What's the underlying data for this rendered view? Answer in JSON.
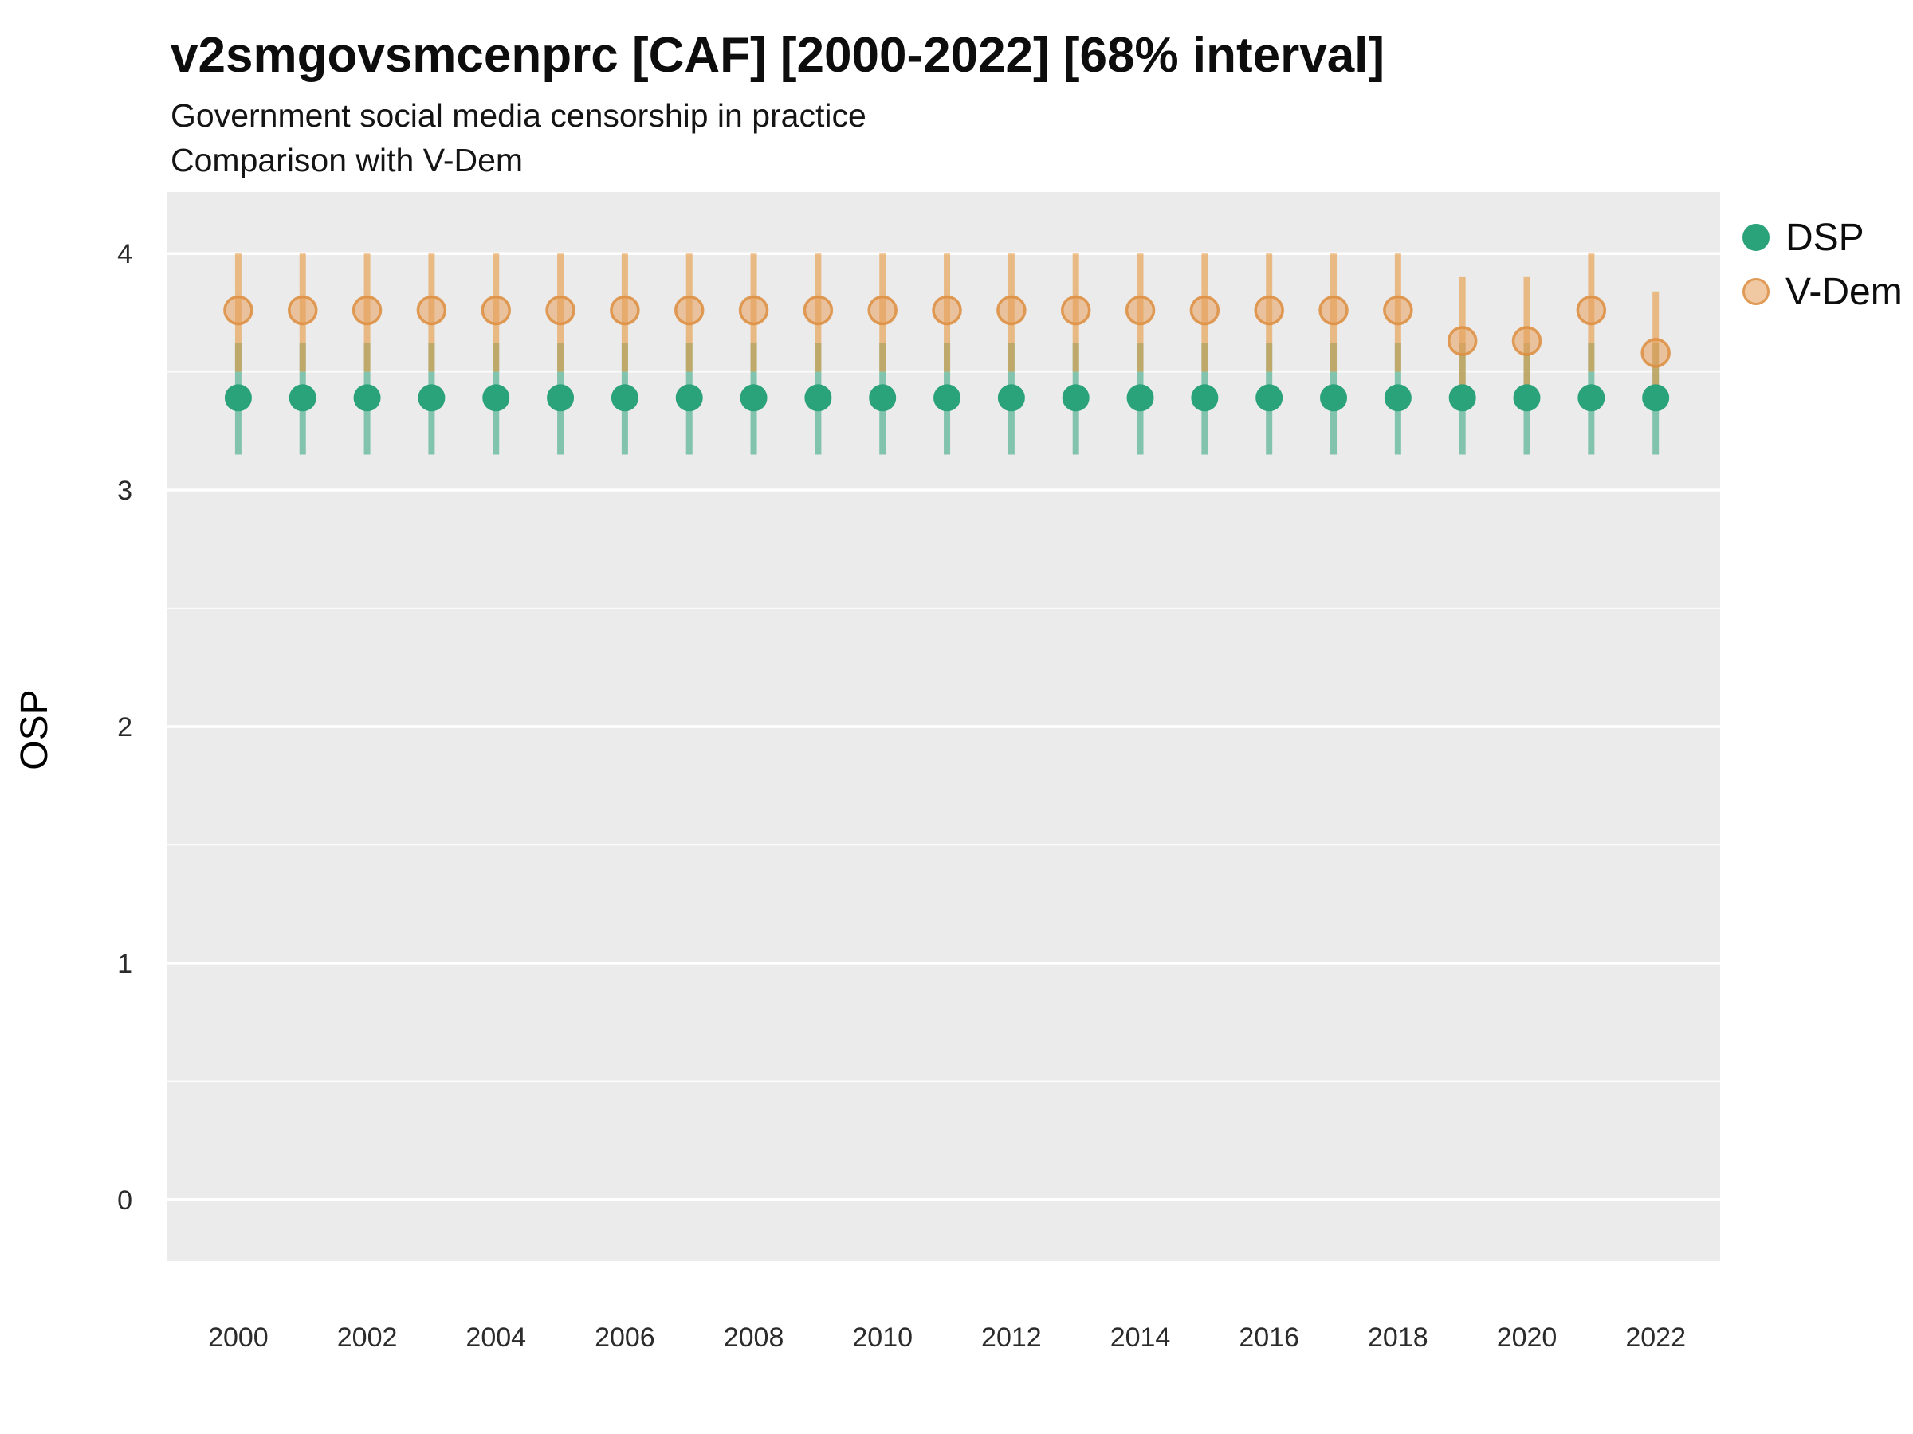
{
  "title": "v2smgovsmcenprc [CAF] [2000-2022] [68% interval]",
  "subtitle1": "Government social media censorship in practice",
  "subtitle2": "Comparison with V-Dem",
  "ylabel": "OSP",
  "legend": [
    {
      "label": "DSP",
      "fill": "#2aa27a",
      "stroke": "#2aa27a"
    },
    {
      "label": "V-Dem",
      "fill": "#f0c9a2",
      "stroke": "#e09a55"
    }
  ],
  "chart_data": {
    "type": "pointrange",
    "title": "v2smgovsmcenprc [CAF] [2000-2022] [68% interval]",
    "xlabel": "",
    "ylabel": "OSP",
    "interval": "68%",
    "xlim": [
      1998.9,
      2023.0
    ],
    "ylim": [
      -0.26,
      4.26
    ],
    "xticks": [
      2000,
      2002,
      2004,
      2006,
      2008,
      2010,
      2012,
      2014,
      2016,
      2018,
      2020,
      2022
    ],
    "yticks": [
      0,
      1,
      2,
      3,
      4
    ],
    "x": [
      2000,
      2001,
      2002,
      2003,
      2004,
      2005,
      2006,
      2007,
      2008,
      2009,
      2010,
      2011,
      2012,
      2013,
      2014,
      2015,
      2016,
      2017,
      2018,
      2019,
      2020,
      2021,
      2022
    ],
    "series": [
      {
        "name": "DSP",
        "median": [
          3.39,
          3.39,
          3.39,
          3.39,
          3.39,
          3.39,
          3.39,
          3.39,
          3.39,
          3.39,
          3.39,
          3.39,
          3.39,
          3.39,
          3.39,
          3.39,
          3.39,
          3.39,
          3.39,
          3.39,
          3.39,
          3.39,
          3.39
        ],
        "lower": [
          3.15,
          3.15,
          3.15,
          3.15,
          3.15,
          3.15,
          3.15,
          3.15,
          3.15,
          3.15,
          3.15,
          3.15,
          3.15,
          3.15,
          3.15,
          3.15,
          3.15,
          3.15,
          3.15,
          3.15,
          3.15,
          3.15,
          3.15
        ],
        "upper": [
          3.62,
          3.62,
          3.62,
          3.62,
          3.62,
          3.62,
          3.62,
          3.62,
          3.62,
          3.62,
          3.62,
          3.62,
          3.62,
          3.62,
          3.62,
          3.62,
          3.62,
          3.62,
          3.62,
          3.62,
          3.62,
          3.62,
          3.62
        ]
      },
      {
        "name": "V-Dem",
        "median": [
          3.76,
          3.76,
          3.76,
          3.76,
          3.76,
          3.76,
          3.76,
          3.76,
          3.76,
          3.76,
          3.76,
          3.76,
          3.76,
          3.76,
          3.76,
          3.76,
          3.76,
          3.76,
          3.76,
          3.63,
          3.63,
          3.76,
          3.58
        ],
        "lower": [
          3.5,
          3.5,
          3.5,
          3.5,
          3.5,
          3.5,
          3.5,
          3.5,
          3.5,
          3.5,
          3.5,
          3.5,
          3.5,
          3.5,
          3.5,
          3.5,
          3.5,
          3.5,
          3.5,
          3.38,
          3.38,
          3.5,
          3.34
        ],
        "upper": [
          4.0,
          4.0,
          4.0,
          4.0,
          4.0,
          4.0,
          4.0,
          4.0,
          4.0,
          4.0,
          4.0,
          4.0,
          4.0,
          4.0,
          4.0,
          4.0,
          4.0,
          4.0,
          4.0,
          3.9,
          3.9,
          4.0,
          3.84
        ]
      }
    ],
    "colors": {
      "panel_bg": "#EBEBEB",
      "grid": "#FFFFFF",
      "dsp_point": "#2aa27a",
      "dsp_line": "#2aa27a",
      "vdem_point_fill": "#e8a15c",
      "vdem_point_stroke": "#dd8d3e",
      "vdem_line": "#e8973f",
      "tick_text": "#2b2b2b",
      "axis_title": "#000000"
    },
    "legend_position": "right",
    "grid": true
  }
}
